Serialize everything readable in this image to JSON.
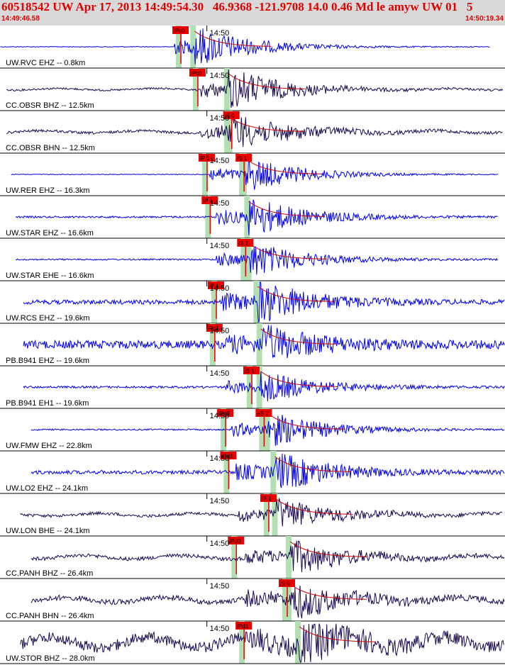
{
  "header": {
    "title": "60518542 UW Apr 17, 2013 14:49:54.30   46.9368 -121.9708 14.0 0.46 Md le amyw UW 01   5",
    "start_time": "14:49:46.58",
    "end_time": "14:50:19.34"
  },
  "colors": {
    "header_bg": "#d9d9d9",
    "header_text": "#e00000",
    "trace_short_period": "#0000ee",
    "trace_broadband": "#1a0a50",
    "pick_box": "#ee0000",
    "pick_window": "#b3e0b3",
    "coda_decay": "#cc0000"
  },
  "chart_data": {
    "type": "seismogram",
    "time_axis": {
      "start": "14:49:46.58",
      "end": "14:50:19.34",
      "start_seconds": 46.58,
      "end_seconds": 79.34,
      "tick_label": "14:50",
      "tick_seconds": 60.0
    },
    "traces": [
      {
        "label": "UW.RVC EHZ -- 0.8km",
        "color": "blue",
        "noise": 0.02,
        "start": 46.6,
        "end": 78.4,
        "p_time": 57.9,
        "s_time": 59.2,
        "amp": 0.9,
        "picks": [
          {
            "label": "iPc0",
            "time": 57.9
          }
        ]
      },
      {
        "label": "CC.OBSR BHZ -- 12.5km",
        "color": "dark",
        "noise": 0.05,
        "start": 47.0,
        "end": 79.2,
        "p_time": 59.6,
        "s_time": 61.4,
        "amp": 0.9,
        "picks": [
          {
            "label": "iPc0",
            "time": 59.0
          }
        ]
      },
      {
        "label": "CC.OBSR BHN -- 12.5km",
        "color": "dark",
        "noise": 0.07,
        "start": 47.0,
        "end": 79.2,
        "p_time": 59.6,
        "s_time": 61.4,
        "amp": 0.85,
        "picks": [
          {
            "label": "iS 0",
            "time": 61.2
          }
        ]
      },
      {
        "label": "UW.RER EHZ -- 16.3km",
        "color": "blue",
        "noise": 0.02,
        "start": 47.3,
        "end": 78.9,
        "p_time": 60.2,
        "s_time": 62.5,
        "amp": 0.8,
        "picks": [
          {
            "label": "iP 1",
            "time": 59.6
          },
          {
            "label": "iS 1",
            "time": 62.0
          }
        ]
      },
      {
        "label": "UW.STAR EHZ -- 16.6km",
        "color": "blue",
        "noise": 0.05,
        "start": 47.6,
        "end": 78.9,
        "p_time": 60.6,
        "s_time": 62.7,
        "amp": 0.9,
        "picks": [
          {
            "label": "iP 1",
            "time": 59.8
          }
        ]
      },
      {
        "label": "UW.STAR EHE -- 16.6km",
        "color": "blue",
        "noise": 0.04,
        "start": 47.6,
        "end": 78.9,
        "p_time": 60.6,
        "s_time": 62.8,
        "amp": 0.8,
        "picks": [
          {
            "label": "iS 1",
            "time": 62.1
          }
        ]
      },
      {
        "label": "UW.RCS EHZ -- 19.6km",
        "color": "blue",
        "noise": 0.12,
        "start": 48.1,
        "end": 79.3,
        "p_time": 61.0,
        "s_time": 63.3,
        "amp": 0.95,
        "picks": [
          {
            "label": "iP 1",
            "time": 60.2
          }
        ]
      },
      {
        "label": "PB.B941 EHZ -- 19.6km",
        "color": "blue",
        "noise": 0.22,
        "start": 48.1,
        "end": 79.3,
        "p_time": 61.2,
        "s_time": 63.5,
        "amp": 0.8,
        "picks": [
          {
            "label": "iPd1",
            "time": 60.1
          }
        ]
      },
      {
        "label": "PB.B941 EH1 -- 19.6km",
        "color": "blue",
        "noise": 0.06,
        "start": 48.1,
        "end": 79.3,
        "p_time": 61.2,
        "s_time": 63.5,
        "amp": 0.7,
        "picks": [
          {
            "label": "iS 1",
            "time": 62.5
          }
        ]
      },
      {
        "label": "UW.FMW EHZ -- 22.8km",
        "color": "blue",
        "noise": 0.04,
        "start": 48.6,
        "end": 79.3,
        "p_time": 61.6,
        "s_time": 64.0,
        "amp": 0.8,
        "picks": [
          {
            "label": "iPc0",
            "time": 60.8
          },
          {
            "label": "eS 2",
            "time": 63.3
          }
        ]
      },
      {
        "label": "UW.LO2 EHZ -- 24.1km",
        "color": "blue",
        "noise": 0.1,
        "start": 48.6,
        "end": 79.3,
        "p_time": 61.8,
        "s_time": 64.4,
        "amp": 0.9,
        "picks": [
          {
            "label": "iPd1",
            "time": 61.0
          }
        ]
      },
      {
        "label": "UW.LON BHE -- 24.1km",
        "color": "dark",
        "noise": 0.08,
        "start": 47.9,
        "end": 79.2,
        "p_time": 62.0,
        "s_time": 64.5,
        "amp": 0.7,
        "picks": [
          {
            "label": "iS 1",
            "time": 63.6
          }
        ]
      },
      {
        "label": "CC.PANH BHZ -- 26.4km",
        "color": "dark",
        "noise": 0.1,
        "start": 48.6,
        "end": 79.3,
        "p_time": 62.5,
        "s_time": 65.4,
        "amp": 0.75,
        "picks": [
          {
            "label": "iPd0",
            "time": 61.5
          }
        ]
      },
      {
        "label": "CC.PANH BHN -- 26.4km",
        "color": "dark",
        "noise": 0.14,
        "start": 48.6,
        "end": 79.3,
        "p_time": 62.5,
        "s_time": 65.4,
        "amp": 0.8,
        "picks": [
          {
            "label": "iS 0",
            "time": 64.8
          }
        ]
      },
      {
        "label": "UW.STOR BHZ -- 28.0km",
        "color": "dark",
        "noise": 0.3,
        "start": 47.9,
        "end": 79.3,
        "p_time": 62.9,
        "s_time": 66.0,
        "amp": 0.9,
        "picks": [
          {
            "label": "iPd1",
            "time": 62.0
          }
        ]
      }
    ]
  }
}
